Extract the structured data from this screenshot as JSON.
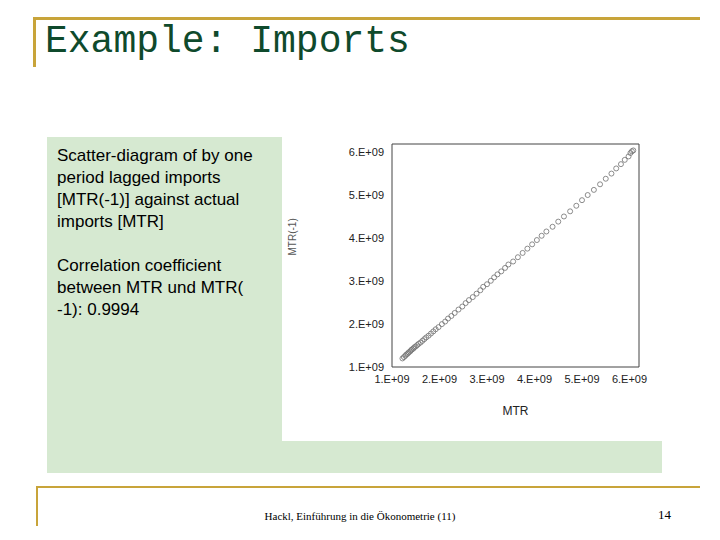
{
  "slide": {
    "title": "Example: Imports",
    "text": [
      "Scatter-diagram of by one period lagged imports [MTR(-1)] against actual imports [MTR]",
      "Correlation coefficient between MTR und MTR( -1): 0.9994"
    ],
    "footer": "Hackl, Einführung in die Ökonometrie (11)",
    "page": 14
  },
  "chart_data": {
    "type": "scatter",
    "x_label": "MTR",
    "y_label": "MTR(-1)",
    "color": "#707070",
    "marker": "open_circle",
    "grid": false,
    "xlim": [
      1000000000,
      6200000000
    ],
    "ylim": [
      1000000000,
      6200000000
    ],
    "xticks": [
      {
        "value": 1000000000,
        "label": "1.E+09"
      },
      {
        "value": 2000000000,
        "label": "2.E+09"
      },
      {
        "value": 3000000000,
        "label": "3.E+09"
      },
      {
        "value": 4000000000,
        "label": "4.E+09"
      },
      {
        "value": 5000000000,
        "label": "5.E+09"
      },
      {
        "value": 6000000000,
        "label": "6.E+09"
      }
    ],
    "yticks": [
      {
        "value": 1000000000,
        "label": "1.E+09"
      },
      {
        "value": 2000000000,
        "label": "2.E+09"
      },
      {
        "value": 3000000000,
        "label": "3.E+09"
      },
      {
        "value": 4000000000,
        "label": "4.E+09"
      },
      {
        "value": 5000000000,
        "label": "5.E+09"
      },
      {
        "value": 6000000000,
        "label": "6.E+09"
      }
    ],
    "x": [
      1220000000.0,
      1250000000.0,
      1280000000.0,
      1300000000.0,
      1330000000.0,
      1350000000.0,
      1380000000.0,
      1400000000.0,
      1420000000.0,
      1450000000.0,
      1470000000.0,
      1500000000.0,
      1530000000.0,
      1560000000.0,
      1600000000.0,
      1640000000.0,
      1680000000.0,
      1720000000.0,
      1770000000.0,
      1820000000.0,
      1870000000.0,
      1920000000.0,
      1980000000.0,
      2050000000.0,
      2120000000.0,
      2180000000.0,
      2250000000.0,
      2320000000.0,
      2400000000.0,
      2480000000.0,
      2550000000.0,
      2620000000.0,
      2700000000.0,
      2780000000.0,
      2860000000.0,
      2920000000.0,
      3000000000.0,
      3080000000.0,
      3150000000.0,
      3220000000.0,
      3300000000.0,
      3380000000.0,
      3450000000.0,
      3550000000.0,
      3650000000.0,
      3750000000.0,
      3850000000.0,
      3950000000.0,
      4050000000.0,
      4150000000.0,
      4250000000.0,
      4380000000.0,
      4500000000.0,
      4620000000.0,
      4750000000.0,
      4880000000.0,
      5000000000.0,
      5120000000.0,
      5250000000.0,
      5380000000.0,
      5500000000.0,
      5620000000.0,
      5720000000.0,
      5820000000.0,
      5900000000.0,
      5980000000.0,
      6020000000.0,
      6050000000.0,
      6080000000.0
    ],
    "values": [
      1200000000.0,
      1230000000.0,
      1260000000.0,
      1290000000.0,
      1310000000.0,
      1340000000.0,
      1360000000.0,
      1390000000.0,
      1410000000.0,
      1430000000.0,
      1460000000.0,
      1480000000.0,
      1510000000.0,
      1540000000.0,
      1570000000.0,
      1610000000.0,
      1650000000.0,
      1690000000.0,
      1730000000.0,
      1780000000.0,
      1830000000.0,
      1880000000.0,
      1930000000.0,
      2000000000.0,
      2060000000.0,
      2130000000.0,
      2190000000.0,
      2260000000.0,
      2340000000.0,
      2410000000.0,
      2490000000.0,
      2560000000.0,
      2630000000.0,
      2710000000.0,
      2790000000.0,
      2870000000.0,
      2930000000.0,
      3010000000.0,
      3090000000.0,
      3160000000.0,
      3230000000.0,
      3310000000.0,
      3390000000.0,
      3460000000.0,
      3560000000.0,
      3660000000.0,
      3760000000.0,
      3860000000.0,
      3960000000.0,
      4060000000.0,
      4160000000.0,
      4270000000.0,
      4390000000.0,
      4510000000.0,
      4630000000.0,
      4760000000.0,
      4890000000.0,
      5010000000.0,
      5130000000.0,
      5260000000.0,
      5390000000.0,
      5510000000.0,
      5630000000.0,
      5730000000.0,
      5830000000.0,
      5910000000.0,
      5990000000.0,
      6030000000.0,
      6050000000.0
    ]
  }
}
